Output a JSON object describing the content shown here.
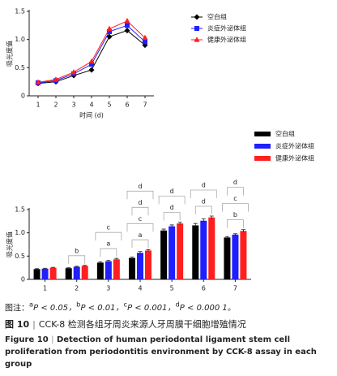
{
  "chart_data": [
    {
      "type": "line",
      "y_label": "吸光度值",
      "x_label": "时间 (d)",
      "categories": [
        "1",
        "2",
        "3",
        "4",
        "5",
        "6",
        "7"
      ],
      "ylim": [
        0,
        1.5
      ],
      "yticks": [
        0,
        0.5,
        {
          "value": 1,
          "label": "1.0"
        },
        1.5
      ],
      "series": [
        {
          "name": "空白组",
          "color": "#000000",
          "marker": "diamond",
          "values": [
            0.22,
            0.25,
            0.36,
            0.46,
            1.05,
            1.16,
            0.9
          ]
        },
        {
          "name": "炎症外泌体组",
          "color": "#1f1fff",
          "marker": "square",
          "values": [
            0.23,
            0.27,
            0.39,
            0.56,
            1.14,
            1.25,
            0.96
          ]
        },
        {
          "name": "健康外泌体组",
          "color": "#ff1f1f",
          "marker": "triangle",
          "values": [
            0.24,
            0.29,
            0.42,
            0.61,
            1.19,
            1.33,
            1.03
          ]
        }
      ]
    },
    {
      "type": "bar",
      "y_label": "吸光度值",
      "categories": [
        "1",
        "2",
        "3",
        "4",
        "5",
        "6",
        "7"
      ],
      "ylim": [
        0,
        1.5
      ],
      "yticks": [
        0,
        0.5,
        {
          "value": 1,
          "label": "1.0"
        },
        1.5
      ],
      "series": [
        {
          "name": "空白组",
          "color": "#000000",
          "values": [
            0.22,
            0.24,
            0.36,
            0.46,
            1.05,
            1.16,
            0.9
          ],
          "errors": [
            0.01,
            0.01,
            0.02,
            0.02,
            0.03,
            0.04,
            0.02
          ]
        },
        {
          "name": "炎症外泌体组",
          "color": "#1f1fff",
          "values": [
            0.23,
            0.27,
            0.39,
            0.57,
            1.14,
            1.26,
            0.96
          ],
          "errors": [
            0.01,
            0.01,
            0.02,
            0.03,
            0.03,
            0.04,
            0.02
          ]
        },
        {
          "name": "健康外泌体组",
          "color": "#ff1f1f",
          "values": [
            0.25,
            0.29,
            0.43,
            0.62,
            1.2,
            1.33,
            1.04
          ],
          "errors": [
            0.01,
            0.01,
            0.02,
            0.02,
            0.03,
            0.03,
            0.03
          ]
        }
      ],
      "significance_labels": [
        [],
        [
          "b"
        ],
        [
          "a",
          "c"
        ],
        [
          "a",
          "c",
          "d",
          "d"
        ],
        [
          "d",
          "d"
        ],
        [
          "d",
          "d"
        ],
        [
          "b",
          "c",
          "d"
        ]
      ]
    }
  ],
  "caption": {
    "note_prefix": "图注：",
    "notes": [
      {
        "sup": "a",
        "text": "P < 0.05，"
      },
      {
        "sup": "b",
        "text": "P < 0.01，"
      },
      {
        "sup": "c",
        "text": "P < 0.001，"
      },
      {
        "sup": "d",
        "text": "P < 0.000 1。"
      }
    ],
    "figure_label": "图 10",
    "separator": "|",
    "title_cn": "CCK-8 检测各组牙周炎来源人牙周膜干细胞增殖情况",
    "figure_label_en": "Figure 10",
    "title_en": "Detection of human periodontal ligament stem cell proliferation from periodontitis environment by CCK-8 assay in each group"
  }
}
